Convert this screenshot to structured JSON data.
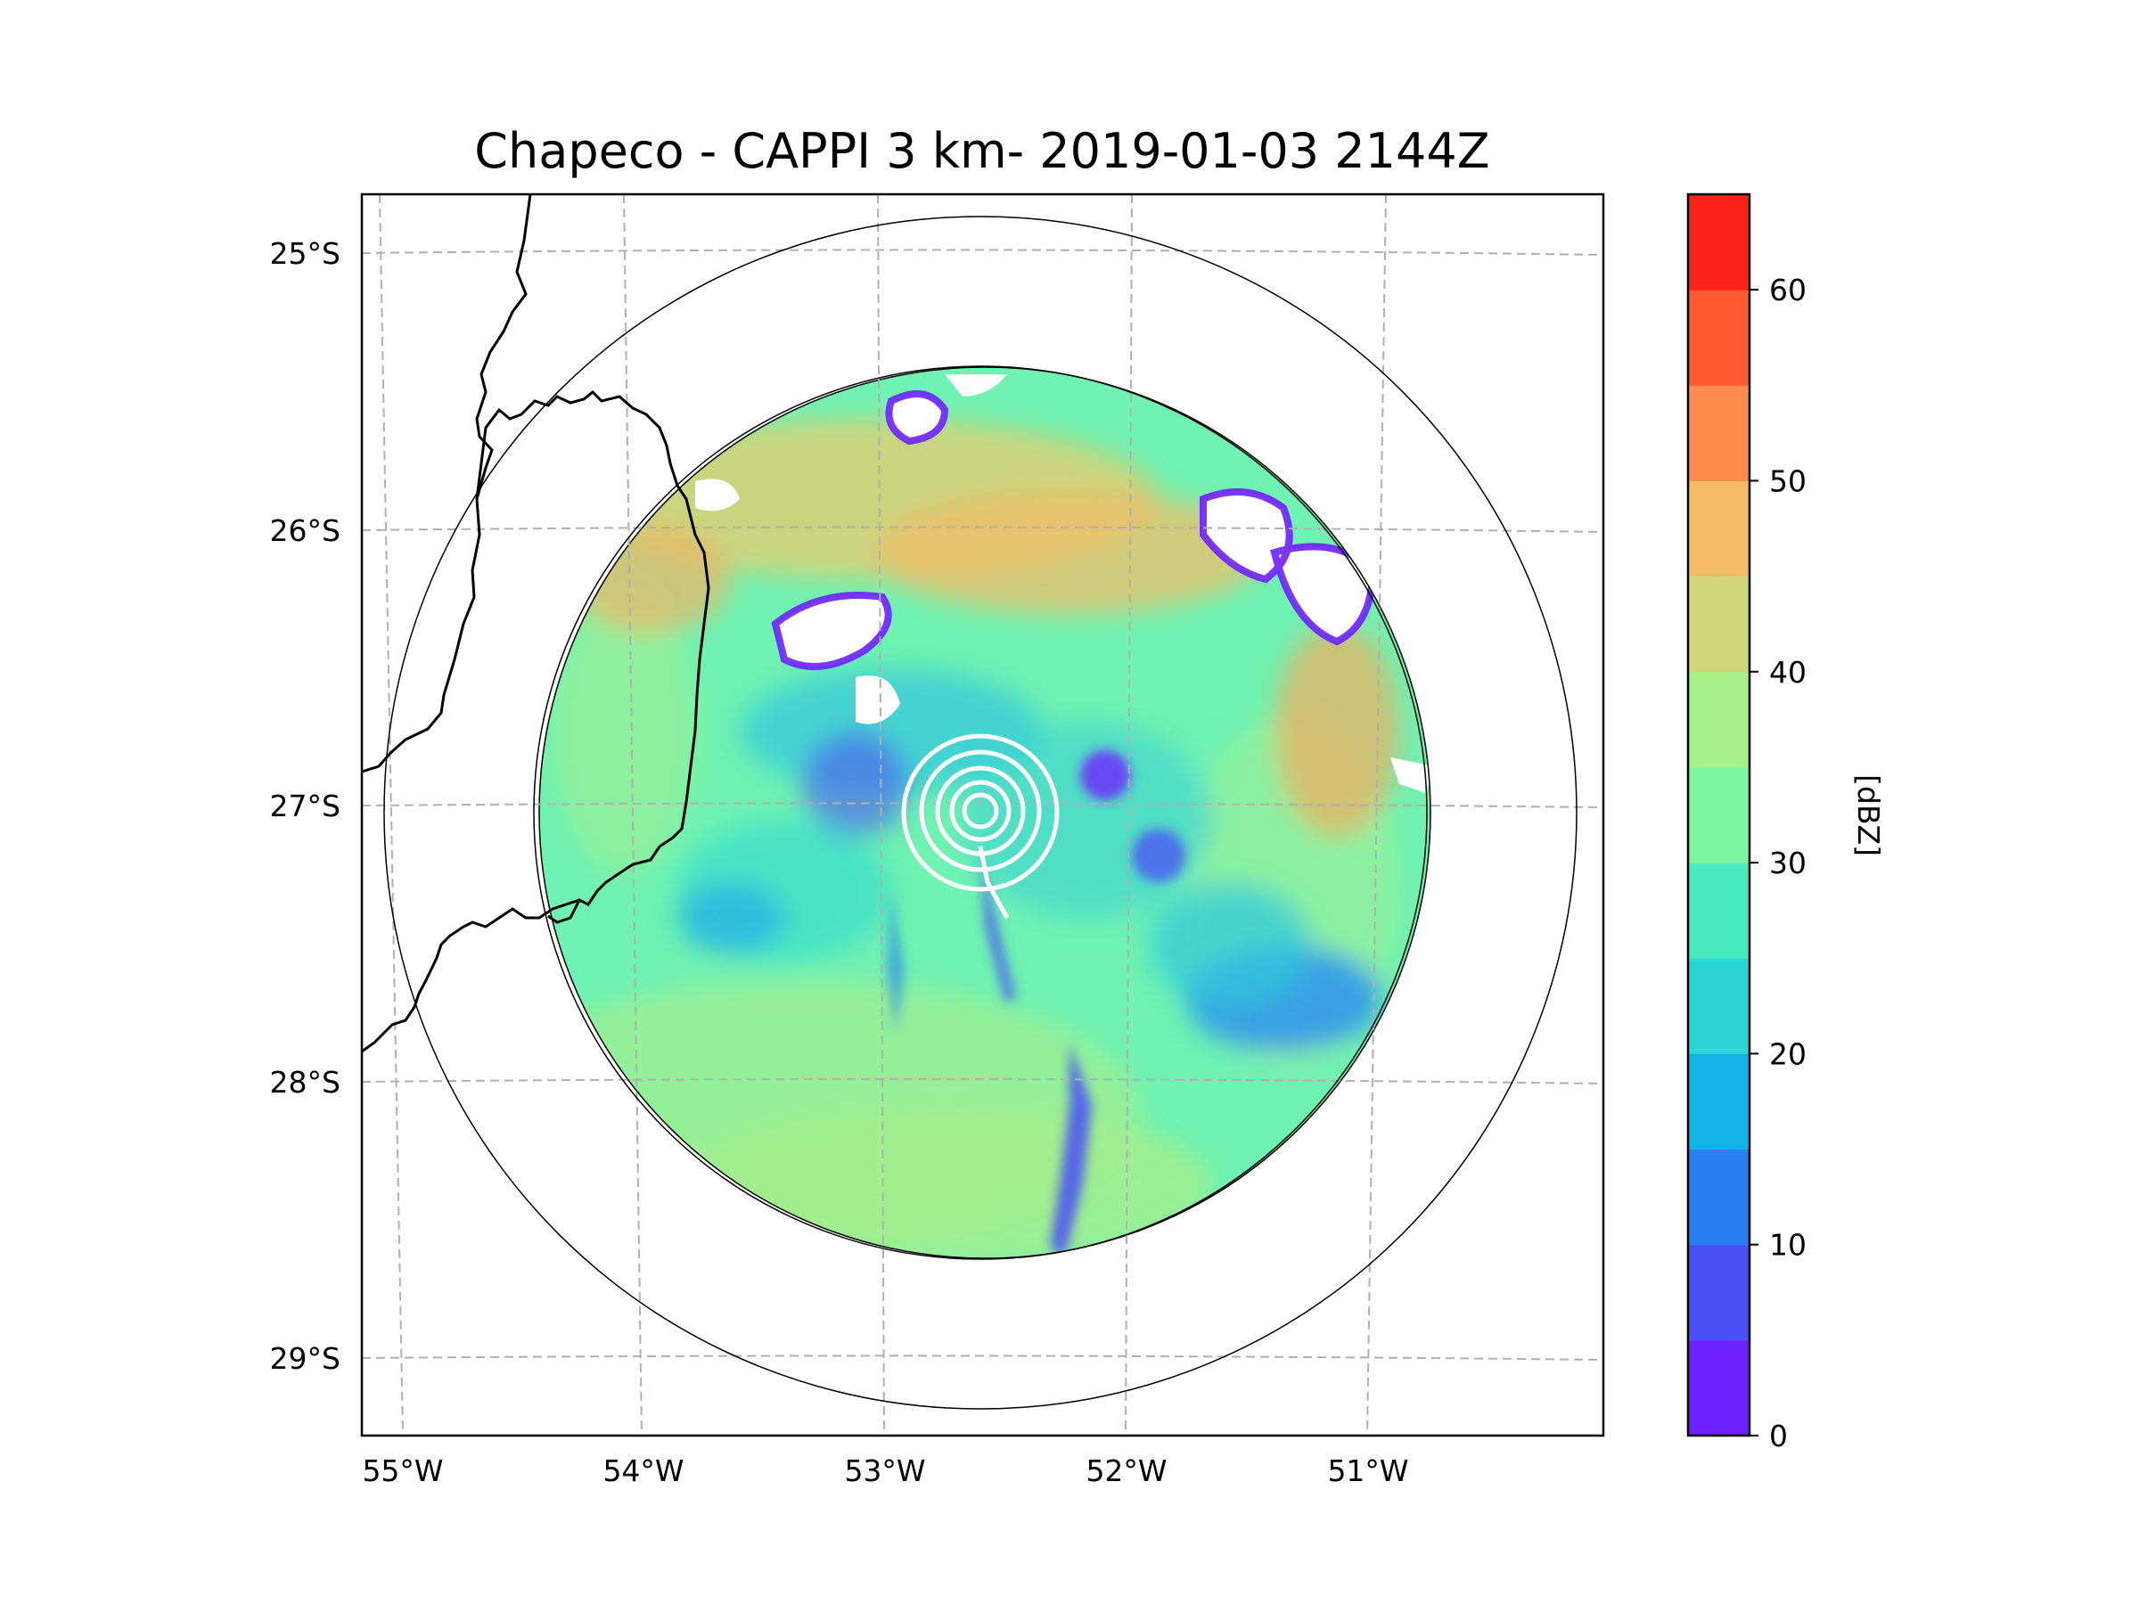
{
  "chart_data": {
    "type": "heatmap",
    "title": "Chapeco - CAPPI 3 km- 2019-01-03 2144Z",
    "xlabel": "",
    "ylabel": "",
    "x_ticks": [
      "55°W",
      "54°W",
      "53°W",
      "52°W",
      "51°W"
    ],
    "y_ticks": [
      "25°S",
      "26°S",
      "27°S",
      "28°S",
      "29°S"
    ],
    "lon_range": [
      -55.2,
      -50.05
    ],
    "lat_range": [
      -29.3,
      -24.8
    ],
    "grid": true,
    "radar_center": {
      "lon": -52.6,
      "lat": -27.05
    },
    "range_rings_deg": [
      2.15,
      2.5
    ],
    "colorbar": {
      "label": "[dBZ]",
      "ticks": [
        "0",
        "10",
        "20",
        "30",
        "40",
        "50",
        "60"
      ],
      "min": 0,
      "max": 65,
      "bounds": [
        0,
        5,
        10,
        15,
        20,
        25,
        30,
        35,
        40,
        45,
        50,
        55,
        60,
        65
      ],
      "colors": [
        "#6e21ff",
        "#4a50f5",
        "#2a7ff0",
        "#12b3e6",
        "#2bd4d6",
        "#49eac0",
        "#7cf7a0",
        "#a8f08a",
        "#cfd77a",
        "#f4bc68",
        "#ff8c4c",
        "#ff5a32",
        "#fb2418"
      ]
    }
  }
}
